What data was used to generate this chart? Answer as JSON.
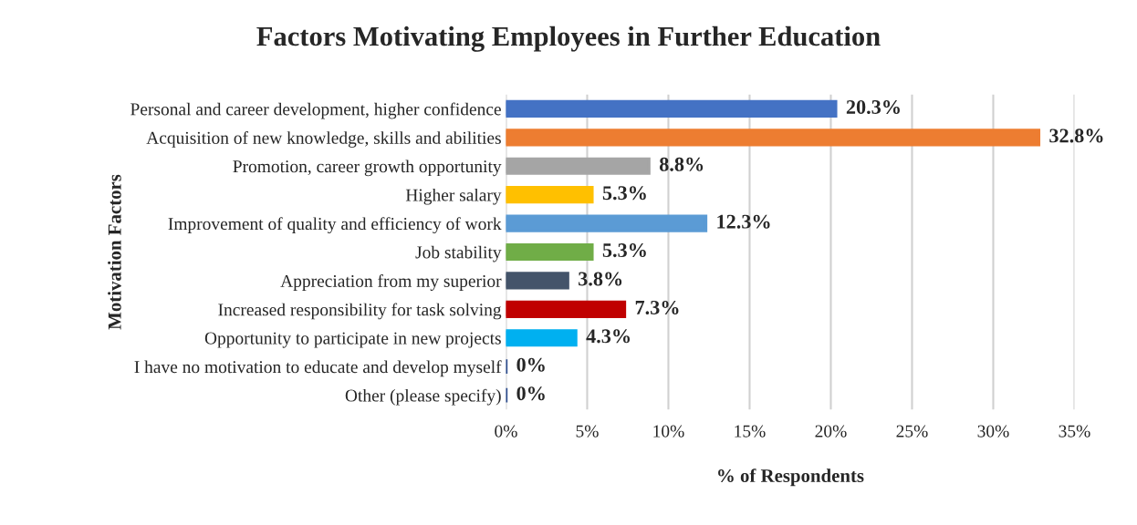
{
  "chart_data": {
    "type": "bar",
    "orientation": "horizontal",
    "title": "Factors Motivating Employees in Further Education",
    "xlabel": "% of Respondents",
    "ylabel": "Motivation Factors",
    "categories": [
      "Personal and career development, higher confidence",
      "Acquisition of new knowledge, skills and abilities",
      "Promotion, career growth opportunity",
      "Higher salary",
      "Improvement of quality and efficiency of work",
      "Job stability",
      "Appreciation from my superior",
      "Increased responsibility for task solving",
      "Opportunity to participate in new projects",
      "I have no motivation to educate and develop myself",
      "Other (please specify)"
    ],
    "values": [
      20.3,
      32.8,
      8.8,
      5.3,
      12.3,
      5.3,
      3.8,
      7.3,
      4.3,
      0,
      0
    ],
    "value_labels": [
      "20.3%",
      "32.8%",
      "8.8%",
      "5.3%",
      "12.3%",
      "5.3%",
      "3.8%",
      "7.3%",
      "4.3%",
      "0%",
      "0%"
    ],
    "colors": [
      "#4472c4",
      "#ed7d31",
      "#a5a5a5",
      "#ffc000",
      "#5b9bd5",
      "#70ad47",
      "#44546a",
      "#c00000",
      "#00b0f0",
      "#2f4f8f",
      "#2f4f8f"
    ],
    "xlim": [
      0,
      35
    ],
    "xticks": [
      {
        "value": 0,
        "label": "0%"
      },
      {
        "value": 5,
        "label": "5%"
      },
      {
        "value": 10,
        "label": "10%"
      },
      {
        "value": 15,
        "label": "15%"
      },
      {
        "value": 20,
        "label": "20%"
      },
      {
        "value": 25,
        "label": "25%"
      },
      {
        "value": 30,
        "label": "30%"
      },
      {
        "value": 35,
        "label": "35%"
      }
    ],
    "grid": "x",
    "legend": false
  }
}
